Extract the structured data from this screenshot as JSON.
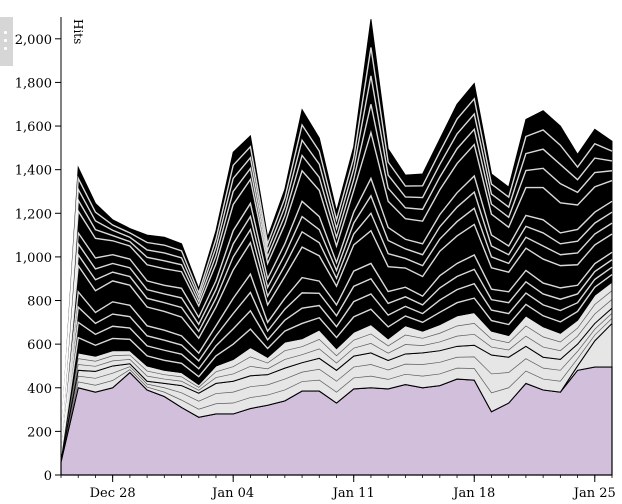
{
  "chart_data": {
    "type": "area",
    "stacked": true,
    "ylabel": "Hits",
    "ylim": [
      0,
      2100
    ],
    "xlim": [
      "2013-12-25",
      "2014-01-26"
    ],
    "yticks": [
      "0",
      "200",
      "400",
      "600",
      "800",
      "1,000",
      "1,200",
      "1,400",
      "1,600",
      "1,800",
      "2,000"
    ],
    "ytick_values": [
      0,
      200,
      400,
      600,
      800,
      1000,
      1200,
      1400,
      1600,
      1800,
      2000
    ],
    "xticks": [
      "Dec 28",
      "Jan 04",
      "Jan 11",
      "Jan 18",
      "Jan 25"
    ],
    "xtick_dates": [
      "2013-12-28",
      "2014-01-04",
      "2014-01-11",
      "2014-01-18",
      "2014-01-25"
    ],
    "dates": [
      "2013-12-25",
      "2013-12-26",
      "2013-12-27",
      "2013-12-28",
      "2013-12-29",
      "2013-12-30",
      "2013-12-31",
      "2014-01-01",
      "2014-01-02",
      "2014-01-03",
      "2014-01-04",
      "2014-01-05",
      "2014-01-06",
      "2014-01-07",
      "2014-01-08",
      "2014-01-09",
      "2014-01-10",
      "2014-01-11",
      "2014-01-12",
      "2014-01-13",
      "2014-01-14",
      "2014-01-15",
      "2014-01-16",
      "2014-01-17",
      "2014-01-18",
      "2014-01-19",
      "2014-01-20",
      "2014-01-21",
      "2014-01-22",
      "2014-01-23",
      "2014-01-24",
      "2014-01-25",
      "2014-01-26"
    ],
    "grid": false,
    "legend": "none",
    "colors": {
      "base_series": "#d1bfdc",
      "mid_fill": "#e6e6e6",
      "upper_fill": "#000000",
      "stroke": "#000000",
      "light_stroke": "#ffffff"
    },
    "series": [
      {
        "values": [
          60,
          400,
          380,
          400,
          470,
          390,
          360,
          310,
          265,
          280,
          280,
          305,
          320,
          340,
          385,
          385,
          330,
          395,
          400,
          395,
          415,
          400,
          410,
          440,
          435,
          290,
          330,
          420,
          390,
          380,
          480,
          495,
          495
        ]
      },
      {
        "values": [
          0,
          0,
          0,
          0,
          0,
          0,
          0,
          0,
          0,
          0,
          0,
          0,
          0,
          0,
          0,
          0,
          0,
          0,
          0,
          0,
          0,
          0,
          0,
          0,
          0,
          0,
          0,
          0,
          0,
          0,
          20,
          120,
          200
        ]
      },
      {
        "values": [
          10,
          80,
          95,
          100,
          40,
          40,
          60,
          100,
          110,
          140,
          150,
          150,
          140,
          150,
          130,
          150,
          150,
          150,
          160,
          130,
          140,
          160,
          160,
          150,
          160,
          260,
          210,
          170,
          150,
          150,
          100,
          80,
          70
        ]
      },
      {
        "values": [
          20,
          80,
          70,
          70,
          60,
          70,
          60,
          60,
          40,
          80,
          100,
          130,
          80,
          120,
          110,
          130,
          100,
          110,
          130,
          100,
          130,
          100,
          120,
          140,
          150,
          110,
          100,
          140,
          140,
          120,
          110,
          130,
          120
        ]
      },
      {
        "values": [
          30,
          350,
          250,
          280,
          260,
          230,
          230,
          210,
          180,
          230,
          350,
          420,
          200,
          250,
          350,
          280,
          250,
          350,
          350,
          270,
          220,
          200,
          280,
          300,
          330,
          240,
          250,
          260,
          250,
          260,
          200,
          180,
          170
        ]
      },
      {
        "values": [
          20,
          250,
          250,
          200,
          200,
          200,
          200,
          220,
          160,
          200,
          300,
          300,
          200,
          250,
          350,
          300,
          180,
          250,
          400,
          300,
          220,
          250,
          280,
          330,
          370,
          250,
          200,
          250,
          300,
          250,
          270,
          250,
          250
        ]
      },
      {
        "values": [
          20,
          250,
          200,
          120,
          100,
          170,
          180,
          160,
          100,
          190,
          300,
          250,
          150,
          200,
          350,
          300,
          200,
          250,
          650,
          300,
          250,
          270,
          290,
          340,
          350,
          230,
          230,
          390,
          440,
          440,
          290,
          330,
          225
        ]
      }
    ]
  }
}
